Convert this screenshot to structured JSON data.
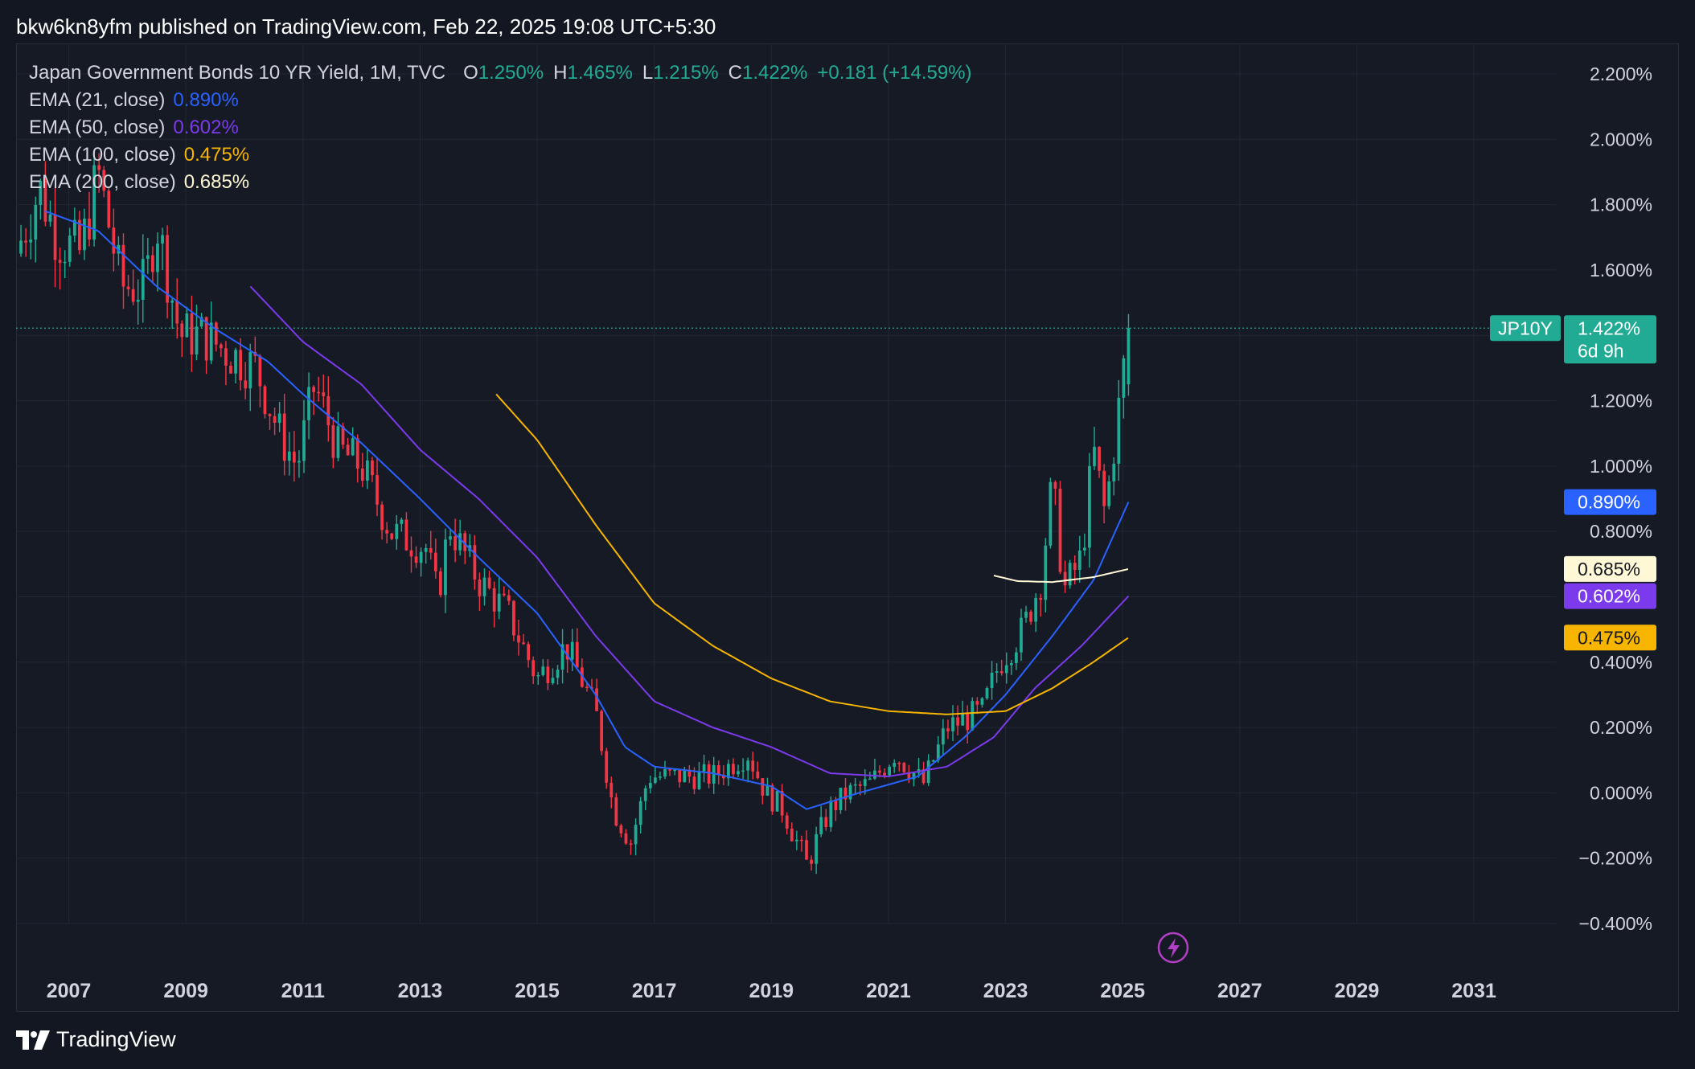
{
  "publisher_line": "bkw6kn8yfm published on TradingView.com, Feb 22, 2025 19:08 UTC+5:30",
  "footer_brand": "TradingView",
  "legend": {
    "instrument": "Japan Government Bonds 10 YR Yield, 1M, TVC",
    "ohlc": [
      {
        "key": "O",
        "value": "1.250%"
      },
      {
        "key": "H",
        "value": "1.465%"
      },
      {
        "key": "L",
        "value": "1.215%"
      },
      {
        "key": "C",
        "value": "1.422%"
      }
    ],
    "change": "+0.181 (+14.59%)",
    "emas": [
      {
        "label": "EMA (21, close)",
        "value": "0.890%",
        "color": "#2962ff"
      },
      {
        "label": "EMA (50, close)",
        "value": "0.602%",
        "color": "#7c3aed"
      },
      {
        "label": "EMA (100, close)",
        "value": "0.475%",
        "color": "#f7b500"
      },
      {
        "label": "EMA (200, close)",
        "value": "0.685%",
        "color": "#fff8d6"
      }
    ]
  },
  "colors": {
    "up": "#22ab94",
    "down": "#f23645",
    "background": "#161a25",
    "grid": "#232733",
    "ema21": "#2962ff",
    "ema50": "#7c3aed",
    "ema100": "#f7b500",
    "ema200": "#fff8d6"
  },
  "price_badges": {
    "symbol": "JP10Y",
    "last": "1.422%",
    "countdown": "6d 9h",
    "ema21": "0.890%",
    "ema200": "0.685%",
    "ema50": "0.602%",
    "ema100": "0.475%"
  },
  "chart_data": {
    "type": "candlestick",
    "title": "Japan Government Bonds 10 YR Yield, 1M, TVC",
    "ylim": [
      -0.4,
      2.2
    ],
    "y_ticks": [
      "2.200%",
      "2.000%",
      "1.800%",
      "1.600%",
      "1.400%",
      "1.200%",
      "1.000%",
      "0.800%",
      "0.600%",
      "0.400%",
      "0.200%",
      "0.000%",
      "−0.200%",
      "−0.400%"
    ],
    "y_tick_values": [
      2.2,
      2.0,
      1.8,
      1.6,
      1.4,
      1.2,
      1.0,
      0.8,
      0.6,
      0.4,
      0.2,
      0.0,
      -0.2,
      -0.4
    ],
    "x_ticks": [
      "2007",
      "2009",
      "2011",
      "2013",
      "2015",
      "2017",
      "2019",
      "2021",
      "2023",
      "2025",
      "2027",
      "2029",
      "2031"
    ],
    "x_tick_years": [
      2007,
      2009,
      2011,
      2013,
      2015,
      2017,
      2019,
      2021,
      2023,
      2025,
      2027,
      2029,
      2031
    ],
    "x_range_years": [
      2006.1,
      2032.4
    ],
    "last_close": 1.422,
    "close_anchors": [
      [
        2006.1,
        1.65
      ],
      [
        2006.5,
        1.85
      ],
      [
        2006.8,
        1.7
      ],
      [
        2007.2,
        1.65
      ],
      [
        2007.5,
        1.9
      ],
      [
        2007.9,
        1.55
      ],
      [
        2008.3,
        1.55
      ],
      [
        2008.5,
        1.75
      ],
      [
        2008.9,
        1.4
      ],
      [
        2009.3,
        1.4
      ],
      [
        2009.7,
        1.35
      ],
      [
        2010.2,
        1.3
      ],
      [
        2010.6,
        1.1
      ],
      [
        2010.9,
        1.0
      ],
      [
        2011.2,
        1.25
      ],
      [
        2011.6,
        1.05
      ],
      [
        2012.0,
        1.0
      ],
      [
        2012.5,
        0.8
      ],
      [
        2013.1,
        0.75
      ],
      [
        2013.3,
        0.6
      ],
      [
        2013.5,
        0.82
      ],
      [
        2014.0,
        0.65
      ],
      [
        2014.5,
        0.55
      ],
      [
        2015.0,
        0.35
      ],
      [
        2015.5,
        0.45
      ],
      [
        2016.0,
        0.25
      ],
      [
        2016.3,
        -0.05
      ],
      [
        2016.6,
        -0.15
      ],
      [
        2016.9,
        0.05
      ],
      [
        2017.5,
        0.05
      ],
      [
        2018.0,
        0.05
      ],
      [
        2018.6,
        0.12
      ],
      [
        2018.9,
        0.0
      ],
      [
        2019.2,
        -0.05
      ],
      [
        2019.6,
        -0.22
      ],
      [
        2020.0,
        -0.05
      ],
      [
        2020.3,
        0.0
      ],
      [
        2020.7,
        0.03
      ],
      [
        2021.1,
        0.12
      ],
      [
        2021.6,
        0.03
      ],
      [
        2022.0,
        0.2
      ],
      [
        2022.6,
        0.25
      ],
      [
        2022.9,
        0.4
      ],
      [
        2023.1,
        0.45
      ],
      [
        2023.3,
        0.5
      ],
      [
        2023.6,
        0.65
      ],
      [
        2023.8,
        0.95
      ],
      [
        2024.0,
        0.62
      ],
      [
        2024.3,
        0.72
      ],
      [
        2024.5,
        1.05
      ],
      [
        2024.7,
        0.85
      ],
      [
        2024.95,
        1.2
      ],
      [
        2025.1,
        1.422
      ]
    ],
    "series": [
      {
        "name": "EMA (21, close)",
        "last": 0.89,
        "anchors": [
          [
            2006.6,
            1.78
          ],
          [
            2007.5,
            1.72
          ],
          [
            2008.5,
            1.55
          ],
          [
            2009.5,
            1.42
          ],
          [
            2010.4,
            1.32
          ],
          [
            2011.0,
            1.22
          ],
          [
            2012.0,
            1.07
          ],
          [
            2013.0,
            0.9
          ],
          [
            2014.0,
            0.72
          ],
          [
            2015.0,
            0.55
          ],
          [
            2016.0,
            0.3
          ],
          [
            2016.5,
            0.14
          ],
          [
            2017.0,
            0.08
          ],
          [
            2018.0,
            0.06
          ],
          [
            2019.0,
            0.02
          ],
          [
            2019.6,
            -0.05
          ],
          [
            2020.5,
            0.0
          ],
          [
            2021.5,
            0.05
          ],
          [
            2022.3,
            0.17
          ],
          [
            2023.0,
            0.3
          ],
          [
            2023.8,
            0.48
          ],
          [
            2024.5,
            0.65
          ],
          [
            2025.1,
            0.89
          ]
        ]
      },
      {
        "name": "EMA (50, close)",
        "last": 0.602,
        "anchors": [
          [
            2010.1,
            1.55
          ],
          [
            2011.0,
            1.38
          ],
          [
            2012.0,
            1.25
          ],
          [
            2013.0,
            1.05
          ],
          [
            2014.0,
            0.9
          ],
          [
            2015.0,
            0.72
          ],
          [
            2016.0,
            0.48
          ],
          [
            2017.0,
            0.28
          ],
          [
            2018.0,
            0.2
          ],
          [
            2019.0,
            0.14
          ],
          [
            2020.0,
            0.06
          ],
          [
            2021.0,
            0.05
          ],
          [
            2022.0,
            0.08
          ],
          [
            2022.8,
            0.17
          ],
          [
            2023.5,
            0.32
          ],
          [
            2024.3,
            0.45
          ],
          [
            2025.1,
            0.602
          ]
        ]
      },
      {
        "name": "EMA (100, close)",
        "last": 0.475,
        "anchors": [
          [
            2014.3,
            1.22
          ],
          [
            2015.0,
            1.08
          ],
          [
            2016.0,
            0.82
          ],
          [
            2017.0,
            0.58
          ],
          [
            2018.0,
            0.45
          ],
          [
            2019.0,
            0.35
          ],
          [
            2020.0,
            0.28
          ],
          [
            2021.0,
            0.25
          ],
          [
            2022.0,
            0.24
          ],
          [
            2023.0,
            0.25
          ],
          [
            2023.8,
            0.32
          ],
          [
            2024.5,
            0.4
          ],
          [
            2025.1,
            0.475
          ]
        ]
      },
      {
        "name": "EMA (200, close)",
        "last": 0.685,
        "anchors": [
          [
            2022.8,
            0.665
          ],
          [
            2023.2,
            0.648
          ],
          [
            2023.8,
            0.645
          ],
          [
            2024.5,
            0.66
          ],
          [
            2025.1,
            0.685
          ]
        ]
      }
    ]
  }
}
